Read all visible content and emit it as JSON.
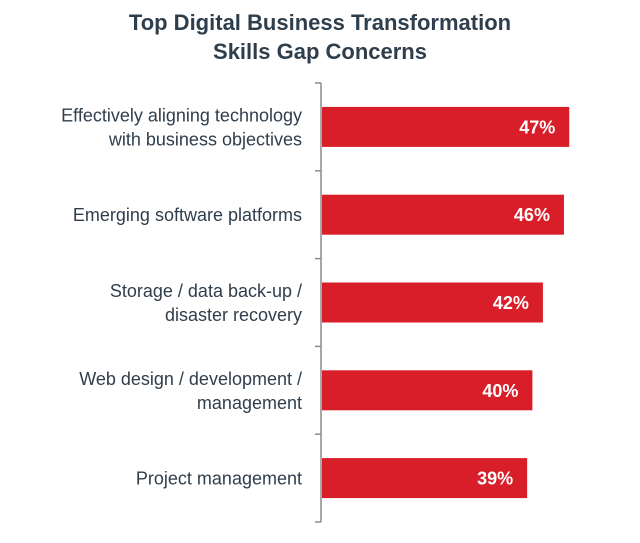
{
  "chart_data": {
    "type": "bar",
    "orientation": "horizontal",
    "title": "Top Digital Business Transformation Skills Gap Concerns",
    "title_lines": [
      "Top Digital Business Transformation",
      "Skills Gap Concerns"
    ],
    "categories": [
      [
        "Effectively aligning technology",
        "with business objectives"
      ],
      [
        "Emerging software platforms"
      ],
      [
        "Storage / data back-up /",
        "disaster recovery"
      ],
      [
        "Web design / development /",
        "management"
      ],
      [
        "Project management"
      ]
    ],
    "values": [
      47,
      46,
      42,
      40,
      39
    ],
    "value_labels": [
      "47%",
      "46%",
      "42%",
      "40%",
      "39%"
    ],
    "xlim": [
      0,
      50
    ],
    "grid": false,
    "legend": "none",
    "bar_color": "#d81e28",
    "text_color": "#2f3e4c",
    "axis_color": "#8c8c8c"
  }
}
